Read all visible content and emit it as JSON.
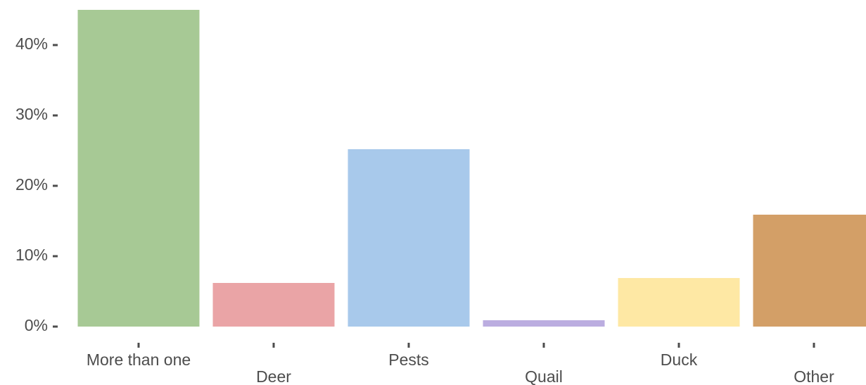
{
  "chart_data": {
    "type": "bar",
    "categories": [
      "More than one",
      "Deer",
      "Pests",
      "Quail",
      "Duck",
      "Other"
    ],
    "values": [
      45,
      6.2,
      25.2,
      0.9,
      6.9,
      15.9
    ],
    "colors": [
      "#a7c995",
      "#eaa4a6",
      "#a8c9eb",
      "#bbade0",
      "#fee8a4",
      "#d39f67"
    ],
    "ylim": [
      0,
      45
    ],
    "yticks": [
      {
        "value": 0,
        "label": "0%"
      },
      {
        "value": 10,
        "label": "10%"
      },
      {
        "value": 20,
        "label": "20%"
      },
      {
        "value": 30,
        "label": "30%"
      },
      {
        "value": 40,
        "label": "40%"
      }
    ],
    "grid": false
  }
}
